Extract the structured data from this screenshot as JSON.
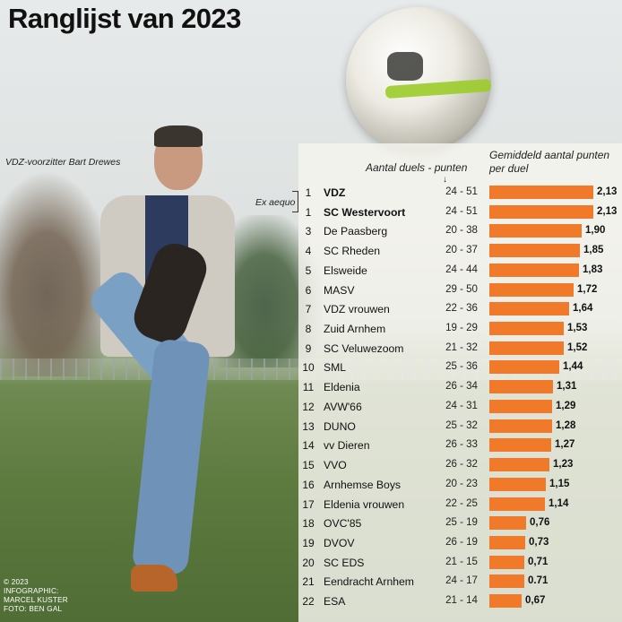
{
  "title": "Ranglijst van 2023",
  "caption": "VDZ-voorzitter Bart Drewes",
  "ex_aequo": "Ex aequo",
  "header_duels_points": "Aantal duels - punten",
  "header_arrow": "↓",
  "header_avg": "Gemiddeld aantal punten per duel",
  "credits": [
    "© 2023",
    "INFOGRAPHIC:",
    "MARCEL KUSTER",
    "FOTO: BEN GAL"
  ],
  "colors": {
    "bar": "#f07a2a"
  },
  "chart_data": {
    "type": "bar",
    "orientation": "horizontal",
    "ylim": [
      0,
      2.13
    ],
    "rows": [
      {
        "rank": "1",
        "club": "VDZ",
        "bold": true,
        "duels_points": "24 - 51",
        "value": 2.13,
        "label": "2,13"
      },
      {
        "rank": "1",
        "club": "SC Westervoort",
        "bold": true,
        "duels_points": "24 - 51",
        "value": 2.13,
        "label": "2,13"
      },
      {
        "rank": "3",
        "club": "De Paasberg",
        "bold": false,
        "duels_points": "20 - 38",
        "value": 1.9,
        "label": "1,90"
      },
      {
        "rank": "4",
        "club": "SC Rheden",
        "bold": false,
        "duels_points": "20 - 37",
        "value": 1.85,
        "label": "1,85"
      },
      {
        "rank": "5",
        "club": "Elsweide",
        "bold": false,
        "duels_points": "24 - 44",
        "value": 1.83,
        "label": "1,83"
      },
      {
        "rank": "6",
        "club": "MASV",
        "bold": false,
        "duels_points": "29 - 50",
        "value": 1.72,
        "label": "1,72"
      },
      {
        "rank": "7",
        "club": "VDZ vrouwen",
        "bold": false,
        "duels_points": "22 - 36",
        "value": 1.64,
        "label": "1,64"
      },
      {
        "rank": "8",
        "club": "Zuid Arnhem",
        "bold": false,
        "duels_points": "19 - 29",
        "value": 1.53,
        "label": "1,53"
      },
      {
        "rank": "9",
        "club": "SC Veluwezoom",
        "bold": false,
        "duels_points": "21 - 32",
        "value": 1.52,
        "label": "1,52"
      },
      {
        "rank": "10",
        "club": "SML",
        "bold": false,
        "duels_points": "25 - 36",
        "value": 1.44,
        "label": "1,44"
      },
      {
        "rank": "11",
        "club": "Eldenia",
        "bold": false,
        "duels_points": "26 - 34",
        "value": 1.31,
        "label": "1,31"
      },
      {
        "rank": "12",
        "club": "AVW'66",
        "bold": false,
        "duels_points": "24 - 31",
        "value": 1.29,
        "label": "1,29"
      },
      {
        "rank": "13",
        "club": "DUNO",
        "bold": false,
        "duels_points": "25 - 32",
        "value": 1.28,
        "label": "1,28"
      },
      {
        "rank": "14",
        "club": "vv Dieren",
        "bold": false,
        "duels_points": "26 - 33",
        "value": 1.27,
        "label": "1,27"
      },
      {
        "rank": "15",
        "club": "VVO",
        "bold": false,
        "duels_points": "26 - 32",
        "value": 1.23,
        "label": "1,23"
      },
      {
        "rank": "16",
        "club": "Arnhemse Boys",
        "bold": false,
        "duels_points": "20 - 23",
        "value": 1.15,
        "label": "1,15"
      },
      {
        "rank": "17",
        "club": "Eldenia vrouwen",
        "bold": false,
        "duels_points": "22 - 25",
        "value": 1.14,
        "label": "1,14"
      },
      {
        "rank": "18",
        "club": "OVC'85",
        "bold": false,
        "duels_points": "25 - 19",
        "value": 0.76,
        "label": "0,76"
      },
      {
        "rank": "19",
        "club": "DVOV",
        "bold": false,
        "duels_points": "26 - 19",
        "value": 0.73,
        "label": "0,73"
      },
      {
        "rank": "20",
        "club": "SC EDS",
        "bold": false,
        "duels_points": "21 - 15",
        "value": 0.71,
        "label": "0,71"
      },
      {
        "rank": "21",
        "club": "Eendracht Arnhem",
        "bold": false,
        "duels_points": "24 - 17",
        "value": 0.71,
        "label": "0.71"
      },
      {
        "rank": "22",
        "club": "ESA",
        "bold": false,
        "duels_points": "21 - 14",
        "value": 0.67,
        "label": "0,67"
      }
    ]
  }
}
